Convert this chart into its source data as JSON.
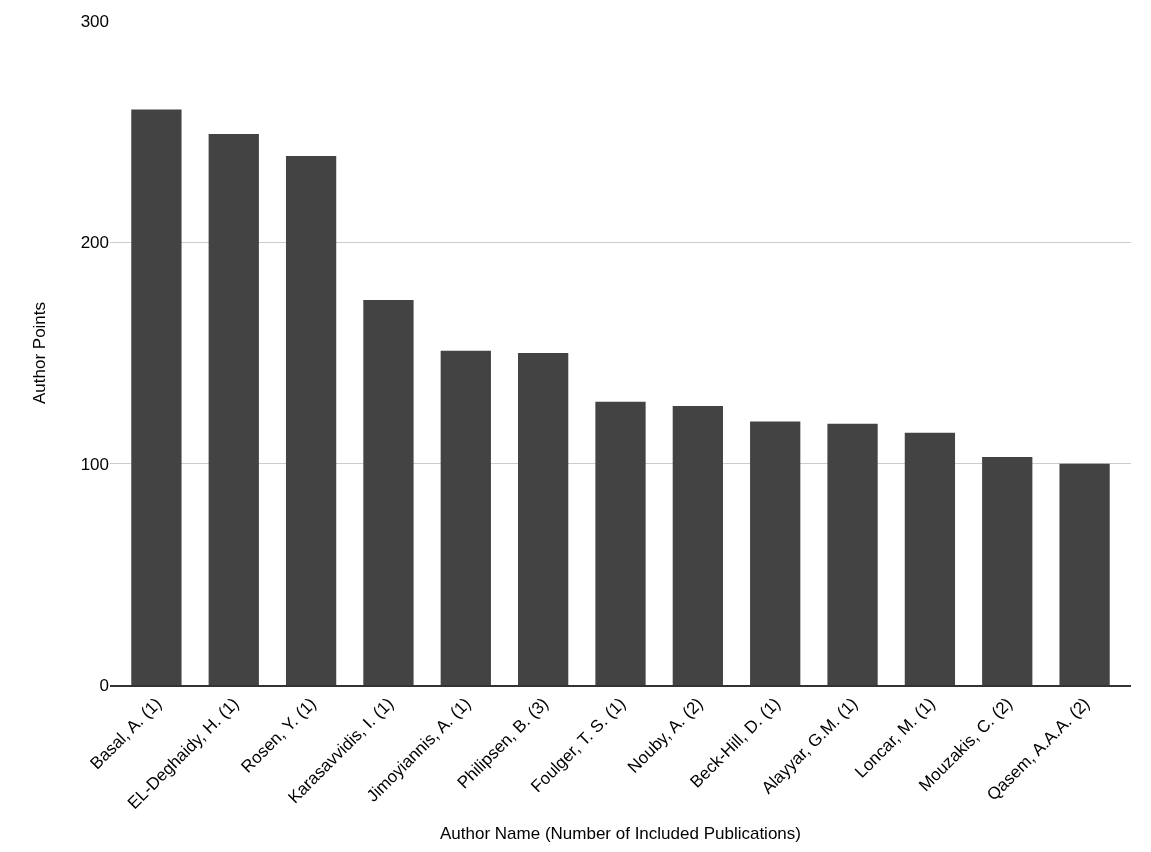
{
  "chart_data": {
    "type": "bar",
    "xlabel": "Author Name (Number of Included Publications)",
    "ylabel": "Author Points",
    "categories": [
      "Basal, A. (1)",
      "EL-Deghaidy, H. (1)",
      "Rosen, Y. (1)",
      "Karasavvidis, I. (1)",
      "Jimoyiannis, A. (1)",
      "Philipsen, B. (3)",
      "Foulger, T. S. (1)",
      "Nouby, A. (2)",
      "Beck-Hill, D. (1)",
      "Alayyar, G.M. (1)",
      "Loncar, M. (1)",
      "Mouzakis, C. (2)",
      "Qasem, A.A.A. (2)"
    ],
    "values": [
      260,
      249,
      239,
      174,
      151,
      150,
      128,
      126,
      119,
      118,
      114,
      103,
      100
    ],
    "color": "#434343",
    "ylim": [
      0,
      300
    ],
    "yticks": [
      0,
      100,
      200,
      300
    ],
    "grid": "y"
  }
}
